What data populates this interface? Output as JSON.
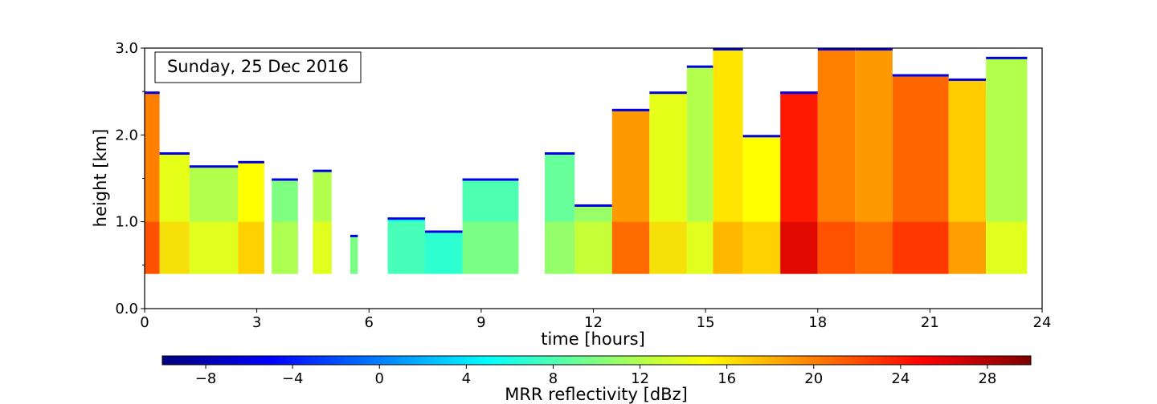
{
  "chart_data": {
    "type": "heatmap",
    "title": "Sunday, 25 Dec 2016",
    "title_color": "#1f5a9e",
    "xlabel": "time [hours]",
    "ylabel": "height [km]",
    "xlim": [
      0,
      24
    ],
    "ylim": [
      0,
      3.0
    ],
    "x_ticks": [
      0,
      3,
      6,
      9,
      12,
      15,
      18,
      21,
      24
    ],
    "x_tick_labels": [
      "0",
      "3",
      "6",
      "9",
      "12",
      "15",
      "18",
      "21",
      "24"
    ],
    "y_ticks": [
      0,
      1.0,
      2.0,
      3.0
    ],
    "y_tick_labels": [
      "0.0",
      "1.0",
      "2.0",
      "3.0"
    ],
    "data_height_min": 0.4,
    "colorbar": {
      "label": "MRR reflectivity [dBz]",
      "range": [
        -10,
        30
      ],
      "ticks": [
        -8,
        -4,
        0,
        4,
        8,
        12,
        16,
        20,
        24,
        28
      ],
      "tick_labels": [
        "−8",
        "−4",
        "0",
        "4",
        "8",
        "12",
        "16",
        "20",
        "24",
        "28"
      ],
      "colormap": "jet",
      "stops": [
        "#00007f",
        "#0000ff",
        "#007fff",
        "#00ffff",
        "#7fff7f",
        "#ffff00",
        "#ff7f00",
        "#ff0000",
        "#7f0000"
      ]
    },
    "echo_columns": [
      {
        "t0": 0.0,
        "t1": 0.4,
        "top": 2.5,
        "dbz": 20
      },
      {
        "t0": 0.4,
        "t1": 1.2,
        "top": 1.8,
        "dbz": 14
      },
      {
        "t0": 1.2,
        "t1": 2.5,
        "top": 1.65,
        "dbz": 12
      },
      {
        "t0": 2.5,
        "t1": 3.2,
        "top": 1.7,
        "dbz": 15
      },
      {
        "t0": 3.4,
        "t1": 4.1,
        "top": 1.5,
        "dbz": 10
      },
      {
        "t0": 4.5,
        "t1": 5.0,
        "top": 1.6,
        "dbz": 12
      },
      {
        "t0": 5.5,
        "t1": 5.7,
        "top": 0.85,
        "dbz": 8
      },
      {
        "t0": 6.5,
        "t1": 7.5,
        "top": 1.05,
        "dbz": 6
      },
      {
        "t0": 7.5,
        "t1": 8.5,
        "top": 0.9,
        "dbz": 5
      },
      {
        "t0": 8.5,
        "t1": 10.0,
        "top": 1.5,
        "dbz": 8
      },
      {
        "t0": 10.7,
        "t1": 11.5,
        "top": 1.8,
        "dbz": 9
      },
      {
        "t0": 11.5,
        "t1": 12.5,
        "top": 1.2,
        "dbz": 11
      },
      {
        "t0": 12.5,
        "t1": 13.5,
        "top": 2.3,
        "dbz": 19
      },
      {
        "t0": 13.5,
        "t1": 14.5,
        "top": 2.5,
        "dbz": 14
      },
      {
        "t0": 14.5,
        "t1": 15.2,
        "top": 2.8,
        "dbz": 12
      },
      {
        "t0": 15.2,
        "t1": 16.0,
        "top": 3.0,
        "dbz": 16
      },
      {
        "t0": 16.0,
        "t1": 17.0,
        "top": 2.0,
        "dbz": 15
      },
      {
        "t0": 17.0,
        "t1": 18.0,
        "top": 2.5,
        "dbz": 24
      },
      {
        "t0": 18.0,
        "t1": 19.0,
        "top": 3.0,
        "dbz": 20
      },
      {
        "t0": 19.0,
        "t1": 20.0,
        "top": 3.0,
        "dbz": 19
      },
      {
        "t0": 20.0,
        "t1": 21.5,
        "top": 2.7,
        "dbz": 21
      },
      {
        "t0": 21.5,
        "t1": 22.5,
        "top": 2.65,
        "dbz": 17
      },
      {
        "t0": 22.5,
        "t1": 23.6,
        "top": 2.9,
        "dbz": 12
      }
    ]
  }
}
